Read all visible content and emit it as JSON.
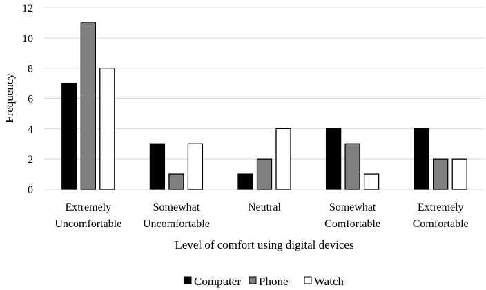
{
  "chart_data": {
    "type": "bar",
    "categories": [
      [
        "Extremely",
        "Uncomfortable"
      ],
      [
        "Somewhat",
        "Uncomfortable"
      ],
      [
        "Neutral"
      ],
      [
        "Somewhat",
        "Comfortable"
      ],
      [
        "Extremely",
        "Comfortable"
      ]
    ],
    "series": [
      {
        "name": "Computer",
        "color": "#000000",
        "values": [
          7,
          3,
          1,
          4,
          4
        ]
      },
      {
        "name": "Phone",
        "color": "#7f7f7f",
        "values": [
          11,
          1,
          2,
          3,
          2
        ]
      },
      {
        "name": "Watch",
        "color": "#ffffff",
        "values": [
          8,
          3,
          4,
          1,
          2
        ]
      }
    ],
    "xlabel": "Level of comfort using digital devices",
    "ylabel": "Frequency",
    "ylim": [
      0,
      12
    ],
    "yticks": [
      "0",
      "2",
      "4",
      "6",
      "8",
      "10",
      "12"
    ],
    "grid": true,
    "legend_position": "bottom"
  }
}
